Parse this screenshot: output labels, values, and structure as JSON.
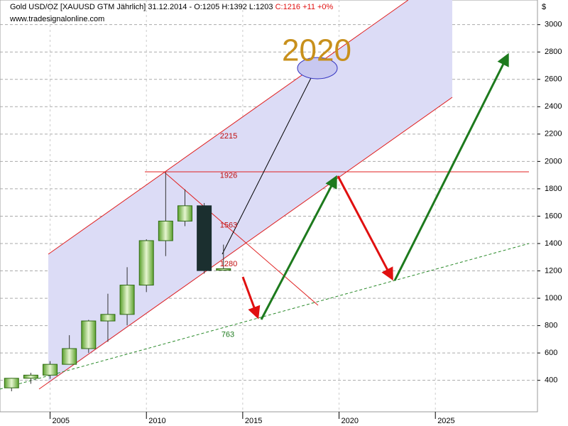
{
  "chart_data": {
    "type": "candlestick",
    "title": "Gold USD/OZ [XAUUSD GTM  Jährlich] 31.12.2014 - O:1205 H:1392 L:1203",
    "title_change": "C:1216 +11 +0%",
    "source": "www.tradesignalonline.com",
    "y_unit": "$",
    "x": [
      2003,
      2004,
      2005,
      2006,
      2007,
      2008,
      2009,
      2010,
      2011,
      2012,
      2013,
      2014
    ],
    "open": [
      345,
      415,
      438,
      517,
      632,
      834,
      882,
      1096,
      1421,
      1564,
      1676,
      1205
    ],
    "high": [
      417,
      455,
      540,
      730,
      842,
      1033,
      1227,
      1431,
      1921,
      1796,
      1696,
      1392
    ],
    "low": [
      320,
      375,
      411,
      515,
      600,
      681,
      802,
      1045,
      1308,
      1527,
      1180,
      1203
    ],
    "close": [
      415,
      438,
      517,
      632,
      834,
      882,
      1096,
      1421,
      1564,
      1676,
      1202,
      1216
    ],
    "up_color": "#8fcf5a",
    "down_color": "#1b2f2f",
    "levels": [
      2215,
      1926,
      1563,
      1280,
      763
    ],
    "target_label": "2020",
    "xlim": [
      2002.4,
      2030.3
    ],
    "xticks": [
      2005,
      2010,
      2015,
      2020,
      2025
    ],
    "ylim": [
      170,
      3180
    ],
    "yticks": [
      400,
      600,
      800,
      1000,
      1200,
      1400,
      1600,
      1800,
      2000,
      2200,
      2400,
      2600,
      2800,
      3000
    ],
    "grid": true
  }
}
